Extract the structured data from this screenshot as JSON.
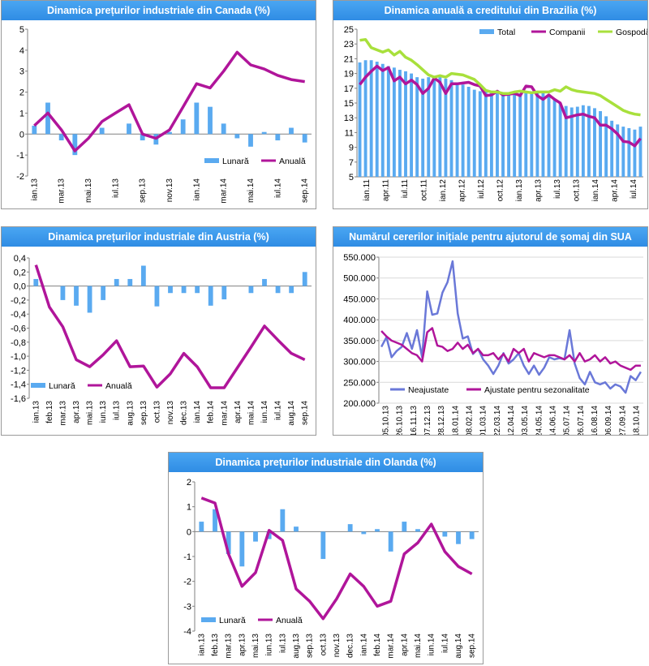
{
  "charts": [
    {
      "title": "Dinamica prețurilor industriale din Canada (%)",
      "chart_data": {
        "type": "bar+line",
        "y_ticks": [
          -2,
          -1,
          0,
          1,
          2,
          3,
          4,
          5
        ],
        "ylim": [
          -2,
          5
        ],
        "x_labels": [
          "ian.13",
          "mar.13",
          "mai.13",
          "iul.13",
          "sep.13",
          "nov.13",
          "ian.14",
          "mar.14",
          "mai.14",
          "iul.14",
          "sep.14"
        ],
        "months": [
          "ian.13",
          "feb.13",
          "mar.13",
          "apr.13",
          "mai.13",
          "iun.13",
          "iul.13",
          "aug.13",
          "sep.13",
          "oct.13",
          "nov.13",
          "dec.13",
          "ian.14",
          "feb.14",
          "mar.14",
          "apr.14",
          "mai.14",
          "iun.14",
          "iul.14",
          "aug.14",
          "sep.14"
        ],
        "series": [
          {
            "name": "Lunară",
            "kind": "bar",
            "color": "#5aaaf0",
            "values": [
              0.4,
              1.5,
              -0.3,
              -1.0,
              0.0,
              0.3,
              0.0,
              0.5,
              -0.3,
              -0.5,
              0.1,
              0.7,
              1.5,
              1.3,
              0.5,
              -0.2,
              -0.6,
              0.1,
              -0.3,
              0.3,
              -0.4
            ]
          },
          {
            "name": "Anuală",
            "kind": "line",
            "color": "#b0159a",
            "values": [
              0.4,
              1.0,
              0.2,
              -0.8,
              -0.2,
              0.6,
              1.0,
              1.4,
              0.0,
              -0.2,
              0.2,
              1.3,
              2.4,
              2.2,
              3.0,
              3.9,
              3.3,
              3.1,
              2.8,
              2.6,
              2.5
            ]
          }
        ],
        "legend_position": "bottom-right"
      }
    },
    {
      "title": "Dinamica anuală a creditului din Brazilia (%)",
      "chart_data": {
        "type": "bar+line",
        "y_ticks": [
          5,
          7,
          9,
          11,
          13,
          15,
          17,
          19,
          21,
          23,
          25
        ],
        "ylim": [
          5,
          25
        ],
        "x_labels": [
          "ian.11",
          "apr.11",
          "iul.11",
          "oct.11",
          "ian.12",
          "apr.12",
          "iul.12",
          "oct.12",
          "ian.13",
          "apr.13",
          "iul.13",
          "oct.13",
          "ian.14",
          "apr.14",
          "iul.14"
        ],
        "series": [
          {
            "name": "Total",
            "kind": "bar",
            "color": "#5aaaf0",
            "values": [
              20.5,
              20.8,
              20.8,
              20.6,
              20.3,
              20.0,
              19.8,
              19.5,
              19.3,
              19.0,
              18.5,
              18.3,
              18.5,
              18.5,
              18.5,
              18.3,
              18.1,
              17.8,
              17.5,
              17.2,
              16.8,
              16.6,
              16.6,
              16.5,
              16.5,
              16.4,
              16.2,
              16.2,
              16.3,
              16.4,
              16.5,
              16.5,
              16.4,
              16.0,
              15.5,
              15.0,
              14.6,
              14.4,
              14.5,
              14.7,
              14.6,
              14.3,
              13.9,
              13.2,
              12.6,
              12.1,
              11.8,
              11.6,
              11.4,
              11.8
            ]
          },
          {
            "name": "Companii",
            "kind": "line",
            "color": "#b0159a",
            "values": [
              17.5,
              18.5,
              19.3,
              20.0,
              19.4,
              19.8,
              18.0,
              18.5,
              17.6,
              18.1,
              17.5,
              16.3,
              17.0,
              18.4,
              17.8,
              16.3,
              17.6,
              17.6,
              17.7,
              17.8,
              17.5,
              17.3,
              16.0,
              16.1,
              16.6,
              16.1,
              16.2,
              16.3,
              16.0,
              17.3,
              17.2,
              16.0,
              15.5,
              16.1,
              15.5,
              15.0,
              13.0,
              13.2,
              13.4,
              13.5,
              13.2,
              13.0,
              12.0,
              12.0,
              11.5,
              10.8,
              9.8,
              9.7,
              9.2,
              10.2
            ]
          },
          {
            "name": "Gospodării",
            "kind": "line",
            "color": "#a8e03c",
            "values": [
              23.5,
              23.6,
              22.5,
              22.2,
              21.9,
              22.2,
              21.5,
              22.0,
              21.2,
              20.8,
              20.2,
              19.5,
              18.8,
              18.5,
              18.7,
              18.5,
              19.0,
              18.9,
              18.8,
              18.5,
              18.2,
              17.5,
              16.7,
              16.5,
              16.5,
              16.3,
              16.3,
              16.5,
              16.6,
              16.5,
              16.4,
              16.5,
              16.5,
              16.5,
              16.8,
              16.6,
              17.2,
              16.8,
              16.6,
              16.5,
              16.4,
              16.3,
              16.0,
              15.5,
              15.0,
              14.5,
              14.0,
              13.7,
              13.5,
              13.4
            ]
          }
        ],
        "legend_position": "top-right"
      }
    },
    {
      "title": "Dinamica prețurilor industriale din Austria (%)",
      "chart_data": {
        "type": "bar+line",
        "y_ticks": [
          -1.6,
          -1.4,
          -1.2,
          -1.0,
          -0.8,
          -0.6,
          -0.4,
          -0.2,
          0.0,
          0.2,
          0.4
        ],
        "y_tick_labels": [
          "-1,6",
          "-1,4",
          "-1,2",
          "-1,0",
          "-0,8",
          "-0,6",
          "-0,4",
          "-0,2",
          "0,0",
          "0,2",
          "0,4"
        ],
        "ylim": [
          -1.6,
          0.4
        ],
        "x_labels": [
          "ian.13",
          "feb.13",
          "mar.13",
          "apr.13",
          "mai.13",
          "iun.13",
          "iul.13",
          "aug.13",
          "sep.13",
          "oct.13",
          "nov.13",
          "dec.13",
          "ian.14",
          "feb.14",
          "mar.14",
          "apr.14",
          "mai.14",
          "iun.14",
          "iul.14",
          "aug.14",
          "sep.14"
        ],
        "series": [
          {
            "name": "Lunară",
            "kind": "bar",
            "color": "#5aaaf0",
            "values": [
              0.1,
              0.0,
              -0.2,
              -0.28,
              -0.38,
              -0.2,
              0.1,
              0.1,
              0.29,
              -0.29,
              -0.1,
              -0.1,
              -0.1,
              -0.28,
              -0.19,
              0.0,
              -0.1,
              0.1,
              -0.1,
              -0.1,
              0.2
            ]
          },
          {
            "name": "Anuală",
            "kind": "line",
            "color": "#b0159a",
            "values": [
              0.3,
              -0.3,
              -0.58,
              -1.05,
              -1.15,
              -0.98,
              -0.78,
              -1.15,
              -1.14,
              -1.44,
              -1.25,
              -0.96,
              -1.15,
              -1.45,
              -1.45,
              -1.16,
              -0.87,
              -0.57,
              -0.77,
              -0.96,
              -1.05
            ]
          }
        ],
        "legend_position": "bottom-left"
      }
    },
    {
      "title": "Numărul cererilor inițiale pentru ajutorul de șomaj din SUA",
      "chart_data": {
        "type": "line",
        "y_ticks": [
          200000,
          250000,
          300000,
          350000,
          400000,
          450000,
          500000,
          550000
        ],
        "y_tick_labels": [
          "200.000",
          "250.000",
          "300.000",
          "350.000",
          "400.000",
          "450.000",
          "500.000",
          "550.000"
        ],
        "ylim": [
          200000,
          550000
        ],
        "x_labels": [
          "05.10.13",
          "26.10.13",
          "16.11.13",
          "07.12.13",
          "28.12.13",
          "18.01.14",
          "08.02.14",
          "01.03.14",
          "22.03.14",
          "12.04.14",
          "03.05.14",
          "24.05.14",
          "14.06.14",
          "05.07.14",
          "26.07.14",
          "16.08.14",
          "06.09.14",
          "27.09.14",
          "18.10.14"
        ],
        "series": [
          {
            "name": "Neajustate",
            "kind": "line",
            "color": "#6a78d8",
            "values": [
              335000,
              358000,
              310000,
              325000,
              335000,
              368000,
              330000,
              375000,
              310000,
              468000,
              412000,
              415000,
              465000,
              490000,
              540000,
              415000,
              355000,
              360000,
              318000,
              330000,
              305000,
              290000,
              270000,
              290000,
              320000,
              295000,
              305000,
              320000,
              290000,
              270000,
              290000,
              268000,
              285000,
              310000,
              305000,
              308000,
              305000,
              375000,
              295000,
              260000,
              245000,
              275000,
              250000,
              245000,
              250000,
              235000,
              245000,
              240000,
              225000,
              265000,
              255000,
              275000
            ]
          },
          {
            "name": "Ajustate pentru sezonalitate",
            "kind": "line",
            "color": "#b0159a",
            "values": [
              373000,
              360000,
              350000,
              345000,
              340000,
              330000,
              320000,
              315000,
              300000,
              370000,
              380000,
              338000,
              335000,
              325000,
              330000,
              345000,
              330000,
              340000,
              320000,
              330000,
              315000,
              315000,
              320000,
              305000,
              318000,
              300000,
              330000,
              320000,
              330000,
              300000,
              320000,
              315000,
              310000,
              315000,
              315000,
              310000,
              305000,
              315000,
              300000,
              320000,
              300000,
              305000,
              315000,
              300000,
              310000,
              295000,
              300000,
              290000,
              285000,
              280000,
              290000,
              290000
            ]
          }
        ],
        "legend_position": "bottom"
      }
    },
    {
      "title": "Dinamica prețurilor industriale din Olanda (%)",
      "chart_data": {
        "type": "bar+line",
        "y_ticks": [
          -4,
          -3,
          -2,
          -1,
          0,
          1,
          2
        ],
        "ylim": [
          -4,
          2
        ],
        "x_labels": [
          "ian.13",
          "feb.13",
          "mar.13",
          "apr.13",
          "mai.13",
          "iun.13",
          "iul.13",
          "aug.13",
          "sep.13",
          "oct.13",
          "nov.13",
          "dec.13",
          "ian.14",
          "feb.14",
          "mar.14",
          "apr.14",
          "mai.14",
          "iun.14",
          "iul.14",
          "aug.14",
          "sep.14"
        ],
        "series": [
          {
            "name": "Lunară",
            "kind": "bar",
            "color": "#5aaaf0",
            "values": [
              0.4,
              0.9,
              -0.9,
              -1.4,
              -0.4,
              -0.3,
              0.9,
              0.2,
              0.0,
              -1.1,
              0.0,
              0.3,
              -0.1,
              0.1,
              -0.8,
              0.4,
              0.1,
              0.0,
              -0.2,
              -0.5,
              -0.3
            ]
          },
          {
            "name": "Anuală",
            "kind": "line",
            "color": "#b0159a",
            "values": [
              1.35,
              1.15,
              -0.9,
              -2.2,
              -1.65,
              0.05,
              -0.35,
              -2.3,
              -2.8,
              -3.5,
              -2.7,
              -1.7,
              -2.2,
              -3.0,
              -2.8,
              -0.9,
              -0.45,
              0.3,
              -0.8,
              -1.4,
              -1.7
            ]
          }
        ],
        "legend_position": "bottom-left"
      }
    }
  ]
}
